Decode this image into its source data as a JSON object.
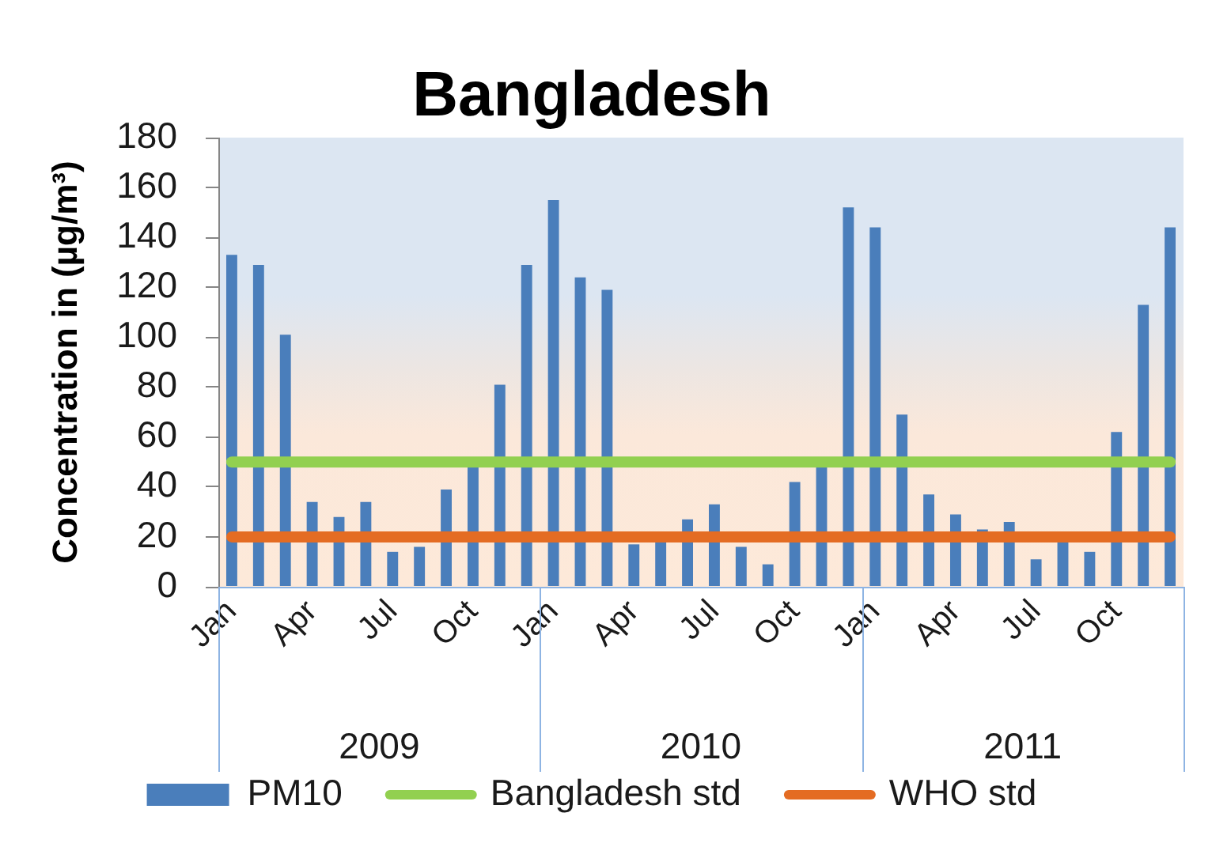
{
  "chart_data": {
    "type": "bar",
    "title": "Bangladesh",
    "ylabel": "Concentration in (µg/m³)",
    "categories": [
      "Jan",
      null,
      null,
      "Apr",
      null,
      null,
      "Jul",
      null,
      null,
      "Oct",
      null,
      null,
      "Jan",
      null,
      null,
      "Apr",
      null,
      null,
      "Jul",
      null,
      null,
      "Oct",
      null,
      null,
      "Jan",
      null,
      null,
      "Apr",
      null,
      null,
      "Jul",
      null,
      null,
      "Oct",
      null,
      null
    ],
    "series": [
      {
        "name": "PM10",
        "color": "#4a7ebb",
        "values": [
          133,
          129,
          101,
          34,
          28,
          34,
          14,
          16,
          39,
          48,
          81,
          129,
          155,
          124,
          119,
          17,
          19,
          27,
          33,
          16,
          9,
          42,
          49,
          152,
          144,
          69,
          37,
          29,
          23,
          26,
          11,
          19,
          14,
          62,
          113,
          144
        ]
      },
      {
        "name": "Bangladesh std",
        "type": "line",
        "color": "#92d050",
        "values": [
          50,
          50,
          50,
          50,
          50,
          50,
          50,
          50,
          50,
          50,
          50,
          50,
          50,
          50,
          50,
          50,
          50,
          50,
          50,
          50,
          50,
          50,
          50,
          50,
          50,
          50,
          50,
          50,
          50,
          50,
          50,
          50,
          50,
          50,
          50,
          50
        ]
      },
      {
        "name": "WHO std",
        "type": "line",
        "color": "#e46c23",
        "values": [
          20,
          20,
          20,
          20,
          20,
          20,
          20,
          20,
          20,
          20,
          20,
          20,
          20,
          20,
          20,
          20,
          20,
          20,
          20,
          20,
          20,
          20,
          20,
          20,
          20,
          20,
          20,
          20,
          20,
          20,
          20,
          20,
          20,
          20,
          20,
          20
        ]
      }
    ],
    "annotations": [
      "2009",
      "2010",
      "2011"
    ],
    "ylim": [
      0,
      180
    ],
    "yticks": [
      0,
      20,
      40,
      60,
      80,
      100,
      120,
      140,
      160,
      180
    ],
    "legend": "bottom",
    "marker": "none"
  }
}
